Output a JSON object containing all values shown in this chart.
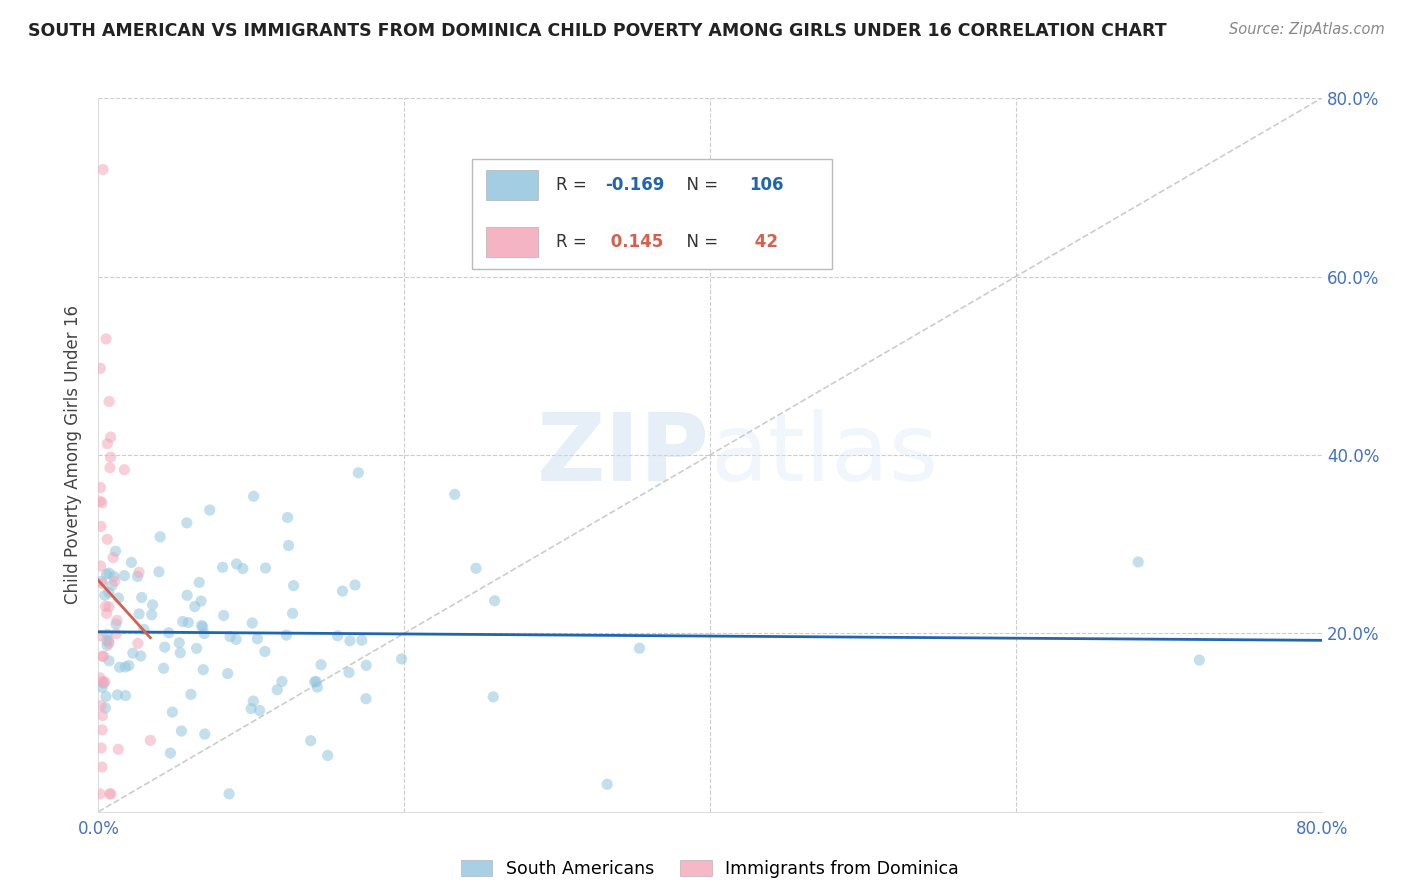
{
  "title": "SOUTH AMERICAN VS IMMIGRANTS FROM DOMINICA CHILD POVERTY AMONG GIRLS UNDER 16 CORRELATION CHART",
  "source": "Source: ZipAtlas.com",
  "ylabel": "Child Poverty Among Girls Under 16",
  "xlim": [
    0,
    0.8
  ],
  "ylim": [
    0,
    0.8
  ],
  "legend_labels": [
    "South Americans",
    "Immigrants from Dominica"
  ],
  "blue_color": "#92c5de",
  "pink_color": "#f4a7b9",
  "blue_line_color": "#2166ac",
  "pink_line_color": "#d6604d",
  "R_blue": -0.169,
  "N_blue": 106,
  "R_pink": 0.145,
  "N_pink": 42,
  "watermark_zip": "ZIP",
  "watermark_atlas": "atlas",
  "background_color": "#ffffff",
  "grid_color": "#cccccc",
  "axis_color": "#4472c4",
  "title_color": "#222222",
  "marker_size": 65,
  "marker_alpha": 0.55
}
